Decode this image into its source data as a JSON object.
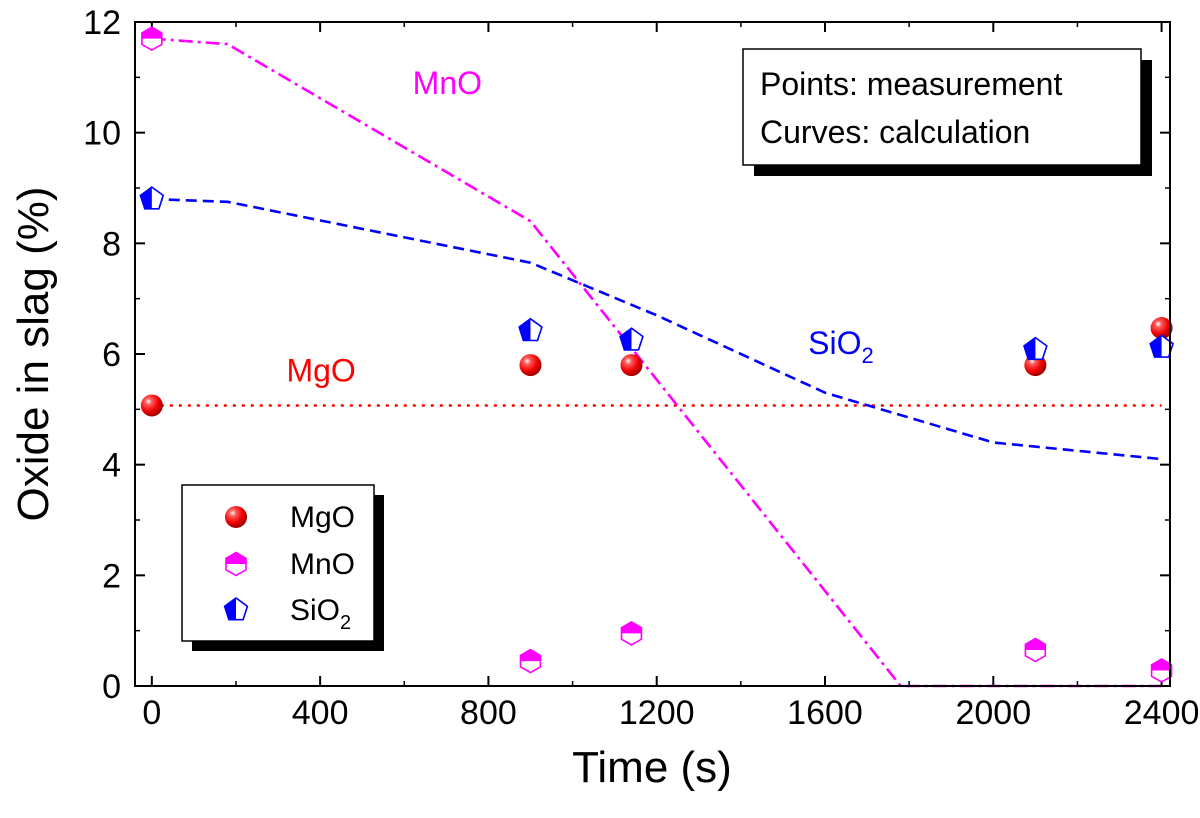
{
  "chart_data": {
    "type": "scatter",
    "xlabel": "Time (s)",
    "ylabel": "Oxide in slag (%)",
    "xlim": [
      -40,
      2420
    ],
    "ylim": [
      0,
      12
    ],
    "xticks": [
      0,
      400,
      800,
      1200,
      1600,
      2000,
      2400
    ],
    "yticks": [
      0,
      2,
      4,
      6,
      8,
      10,
      12
    ],
    "measurements": [
      {
        "name": "MgO",
        "color": "#ff0000",
        "marker": "sphere",
        "x": [
          0,
          900,
          1140,
          2100,
          2400
        ],
        "y": [
          5.07,
          5.8,
          5.8,
          5.8,
          6.47
        ]
      },
      {
        "name": "MnO",
        "color": "#ff00ff",
        "marker": "hexagon",
        "x": [
          0,
          900,
          1140,
          2100,
          2400
        ],
        "y": [
          11.7,
          0.45,
          0.95,
          0.65,
          0.28
        ]
      },
      {
        "name": "SiO2",
        "color": "#0000ff",
        "marker": "pentagon",
        "x": [
          0,
          900,
          1140,
          2100,
          2400
        ],
        "y": [
          8.8,
          6.42,
          6.25,
          6.08,
          6.12
        ]
      }
    ],
    "calculations": [
      {
        "name": "MgO",
        "color": "#ff0000",
        "style": "dotted",
        "x": [
          0,
          2400
        ],
        "y": [
          5.07,
          5.07
        ]
      },
      {
        "name": "MnO",
        "color": "#ff00ff",
        "style": "dashdot",
        "x": [
          0,
          180,
          900,
          1780,
          2400
        ],
        "y": [
          11.7,
          11.6,
          8.4,
          0,
          0
        ]
      },
      {
        "name": "SiO2",
        "color": "#0000ff",
        "style": "dashed",
        "x": [
          0,
          180,
          900,
          1200,
          1600,
          2000,
          2400
        ],
        "y": [
          8.8,
          8.75,
          7.65,
          6.7,
          5.3,
          4.4,
          4.1
        ]
      }
    ],
    "curve_labels": [
      {
        "text": "MnO",
        "color": "#ff00ff",
        "x": 620,
        "y": 10.7
      },
      {
        "text": "SiO",
        "sub": "2",
        "color": "#0000ff",
        "x": 1560,
        "y": 6.0
      },
      {
        "text": "MgO",
        "color": "#ff0000",
        "x": 320,
        "y": 5.5
      }
    ],
    "annotation": {
      "lines": [
        "Points: measurement",
        "Curves: calculation"
      ],
      "placement": "top-right"
    },
    "legend": {
      "placement": "bottom-left",
      "entries": [
        {
          "text": "MgO",
          "marker": "sphere",
          "color": "#ff0000"
        },
        {
          "text": "MnO",
          "marker": "hexagon",
          "color": "#ff00ff"
        },
        {
          "text": "SiO",
          "sub": "2",
          "marker": "pentagon",
          "color": "#0000ff"
        }
      ]
    }
  }
}
